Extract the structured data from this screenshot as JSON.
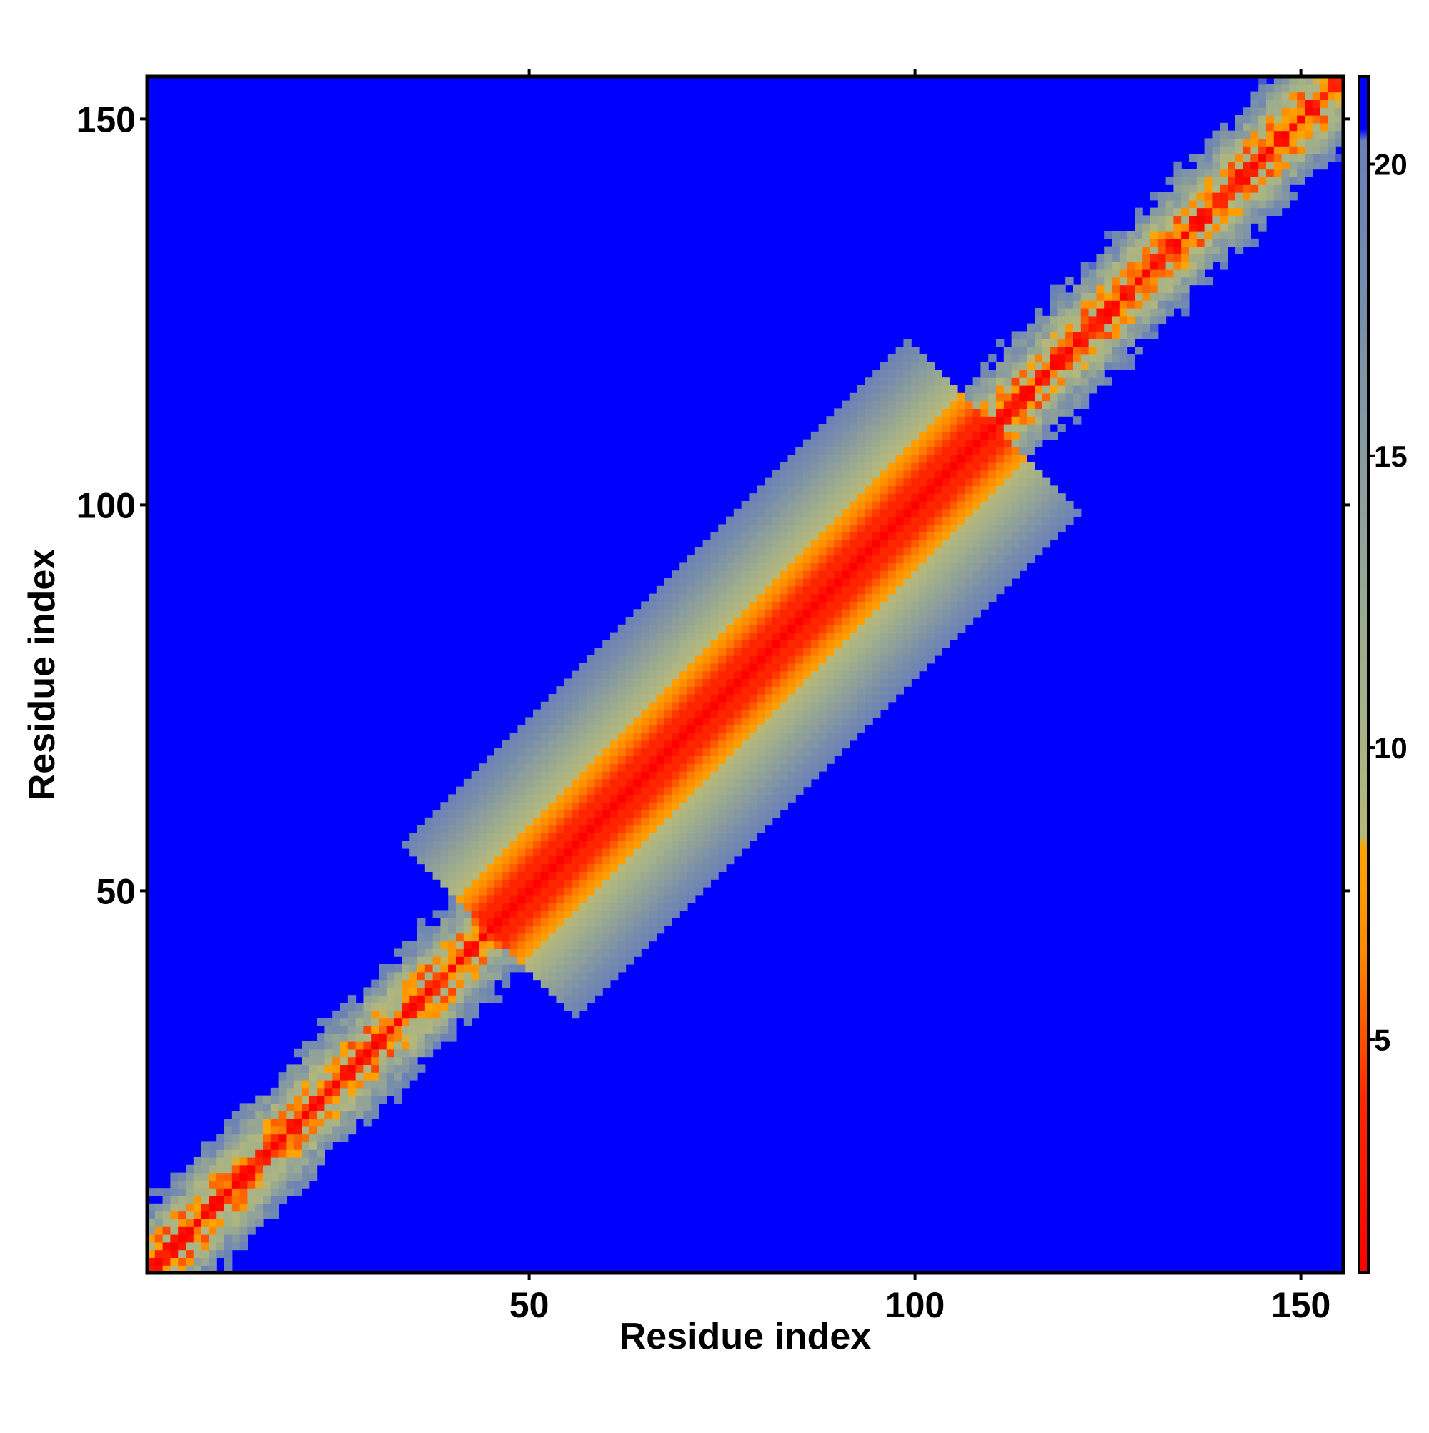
{
  "chart_data": {
    "type": "heatmap",
    "title": "",
    "xlabel": "Residue index",
    "ylabel": "Residue index",
    "xlim": [
      1,
      155
    ],
    "ylim": [
      1,
      155
    ],
    "x_ticks": [
      50,
      100,
      150
    ],
    "y_ticks": [
      50,
      100,
      150
    ],
    "n_residues": 155,
    "values_description": "Symmetric residue-residue map; values rise with distance from the diagonal and saturate at about 21 away from the diagonal band.",
    "colorbar": {
      "ticks": [
        5,
        10,
        15,
        20
      ],
      "range": [
        1,
        21.5
      ],
      "stops": [
        {
          "value": 1,
          "color": "#ff0000"
        },
        {
          "value": 4,
          "color": "#ff2a00"
        },
        {
          "value": 6.5,
          "color": "#ff8a00"
        },
        {
          "value": 8.3,
          "color": "#ffa500"
        },
        {
          "value": 8.5,
          "color": "#b5b87a"
        },
        {
          "value": 11,
          "color": "#a3b08a"
        },
        {
          "value": 14,
          "color": "#8fa09a"
        },
        {
          "value": 17,
          "color": "#7a90a8"
        },
        {
          "value": 20.4,
          "color": "#6a80b8"
        },
        {
          "value": 20.6,
          "color": "#0000ff"
        },
        {
          "value": 21.5,
          "color": "#0000ff"
        }
      ]
    },
    "band_profile": {
      "diagonal_value": 1,
      "offdiag_growth_per_residue": 2.2,
      "wide_region": {
        "start": 45,
        "end": 110,
        "growth_per_residue": 0.85
      },
      "saturation_value": 21
    }
  }
}
